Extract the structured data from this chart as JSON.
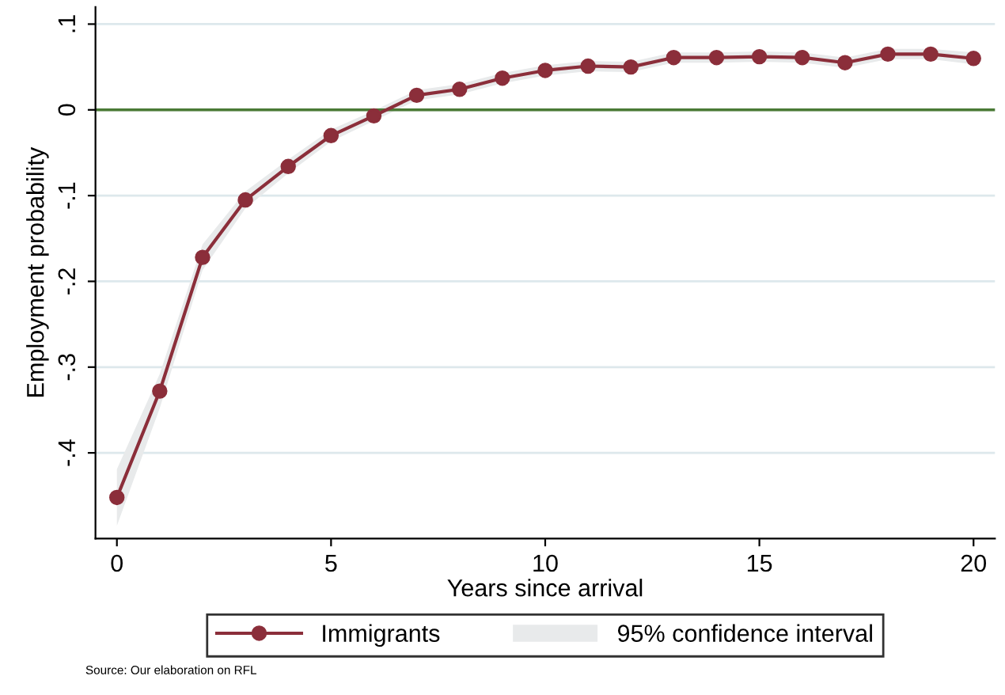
{
  "chart_data": {
    "type": "line",
    "xlabel": "Years since arrival",
    "ylabel": "Employment probability",
    "x": [
      0,
      1,
      2,
      3,
      4,
      5,
      6,
      7,
      8,
      9,
      10,
      11,
      12,
      13,
      14,
      15,
      16,
      17,
      18,
      19,
      20
    ],
    "series": [
      {
        "name": "Immigrants",
        "color": "#8b2e3a",
        "values": [
          -0.452,
          -0.328,
          -0.172,
          -0.105,
          -0.066,
          -0.03,
          -0.007,
          0.017,
          0.024,
          0.037,
          0.046,
          0.051,
          0.05,
          0.061,
          0.061,
          0.062,
          0.061,
          0.055,
          0.065,
          0.065,
          0.06
        ],
        "lower": [
          -0.485,
          -0.348,
          -0.187,
          -0.115,
          -0.074,
          -0.037,
          -0.013,
          0.011,
          0.018,
          0.031,
          0.04,
          0.045,
          0.044,
          0.055,
          0.055,
          0.056,
          0.055,
          0.049,
          0.059,
          0.059,
          0.053
        ],
        "upper": [
          -0.419,
          -0.308,
          -0.157,
          -0.095,
          -0.058,
          -0.023,
          -0.001,
          0.023,
          0.03,
          0.043,
          0.052,
          0.057,
          0.056,
          0.067,
          0.067,
          0.068,
          0.067,
          0.061,
          0.071,
          0.071,
          0.067
        ]
      },
      {
        "name": "95% confidence interval",
        "type": "area",
        "color": "#e8eaeb",
        "values": [
          null,
          null,
          null,
          null,
          null,
          null,
          null,
          null,
          null,
          null,
          null,
          null,
          null,
          null,
          null,
          null,
          null,
          null,
          null,
          null,
          null
        ]
      }
    ],
    "xlim": [
      -0.5,
      20.5
    ],
    "ylim": [
      -0.5,
      0.12
    ],
    "xticks": [
      0,
      5,
      10,
      15,
      20
    ],
    "yticks": [
      {
        "value": 0.1,
        "label": ".1"
      },
      {
        "value": 0,
        "label": "0"
      },
      {
        "value": -0.1,
        "label": "-.1"
      },
      {
        "value": -0.2,
        "label": "-.2"
      },
      {
        "value": -0.3,
        "label": "-.3"
      },
      {
        "value": -0.4,
        "label": "-.4"
      }
    ],
    "ref_lines": [
      {
        "axis": "y",
        "value": 0,
        "color": "#4a7a35"
      }
    ],
    "grid": "y",
    "legend": "bottom",
    "marker": "circle",
    "line_style": "solid",
    "annotations": [
      "Source: Our elaboration on RFL"
    ]
  }
}
